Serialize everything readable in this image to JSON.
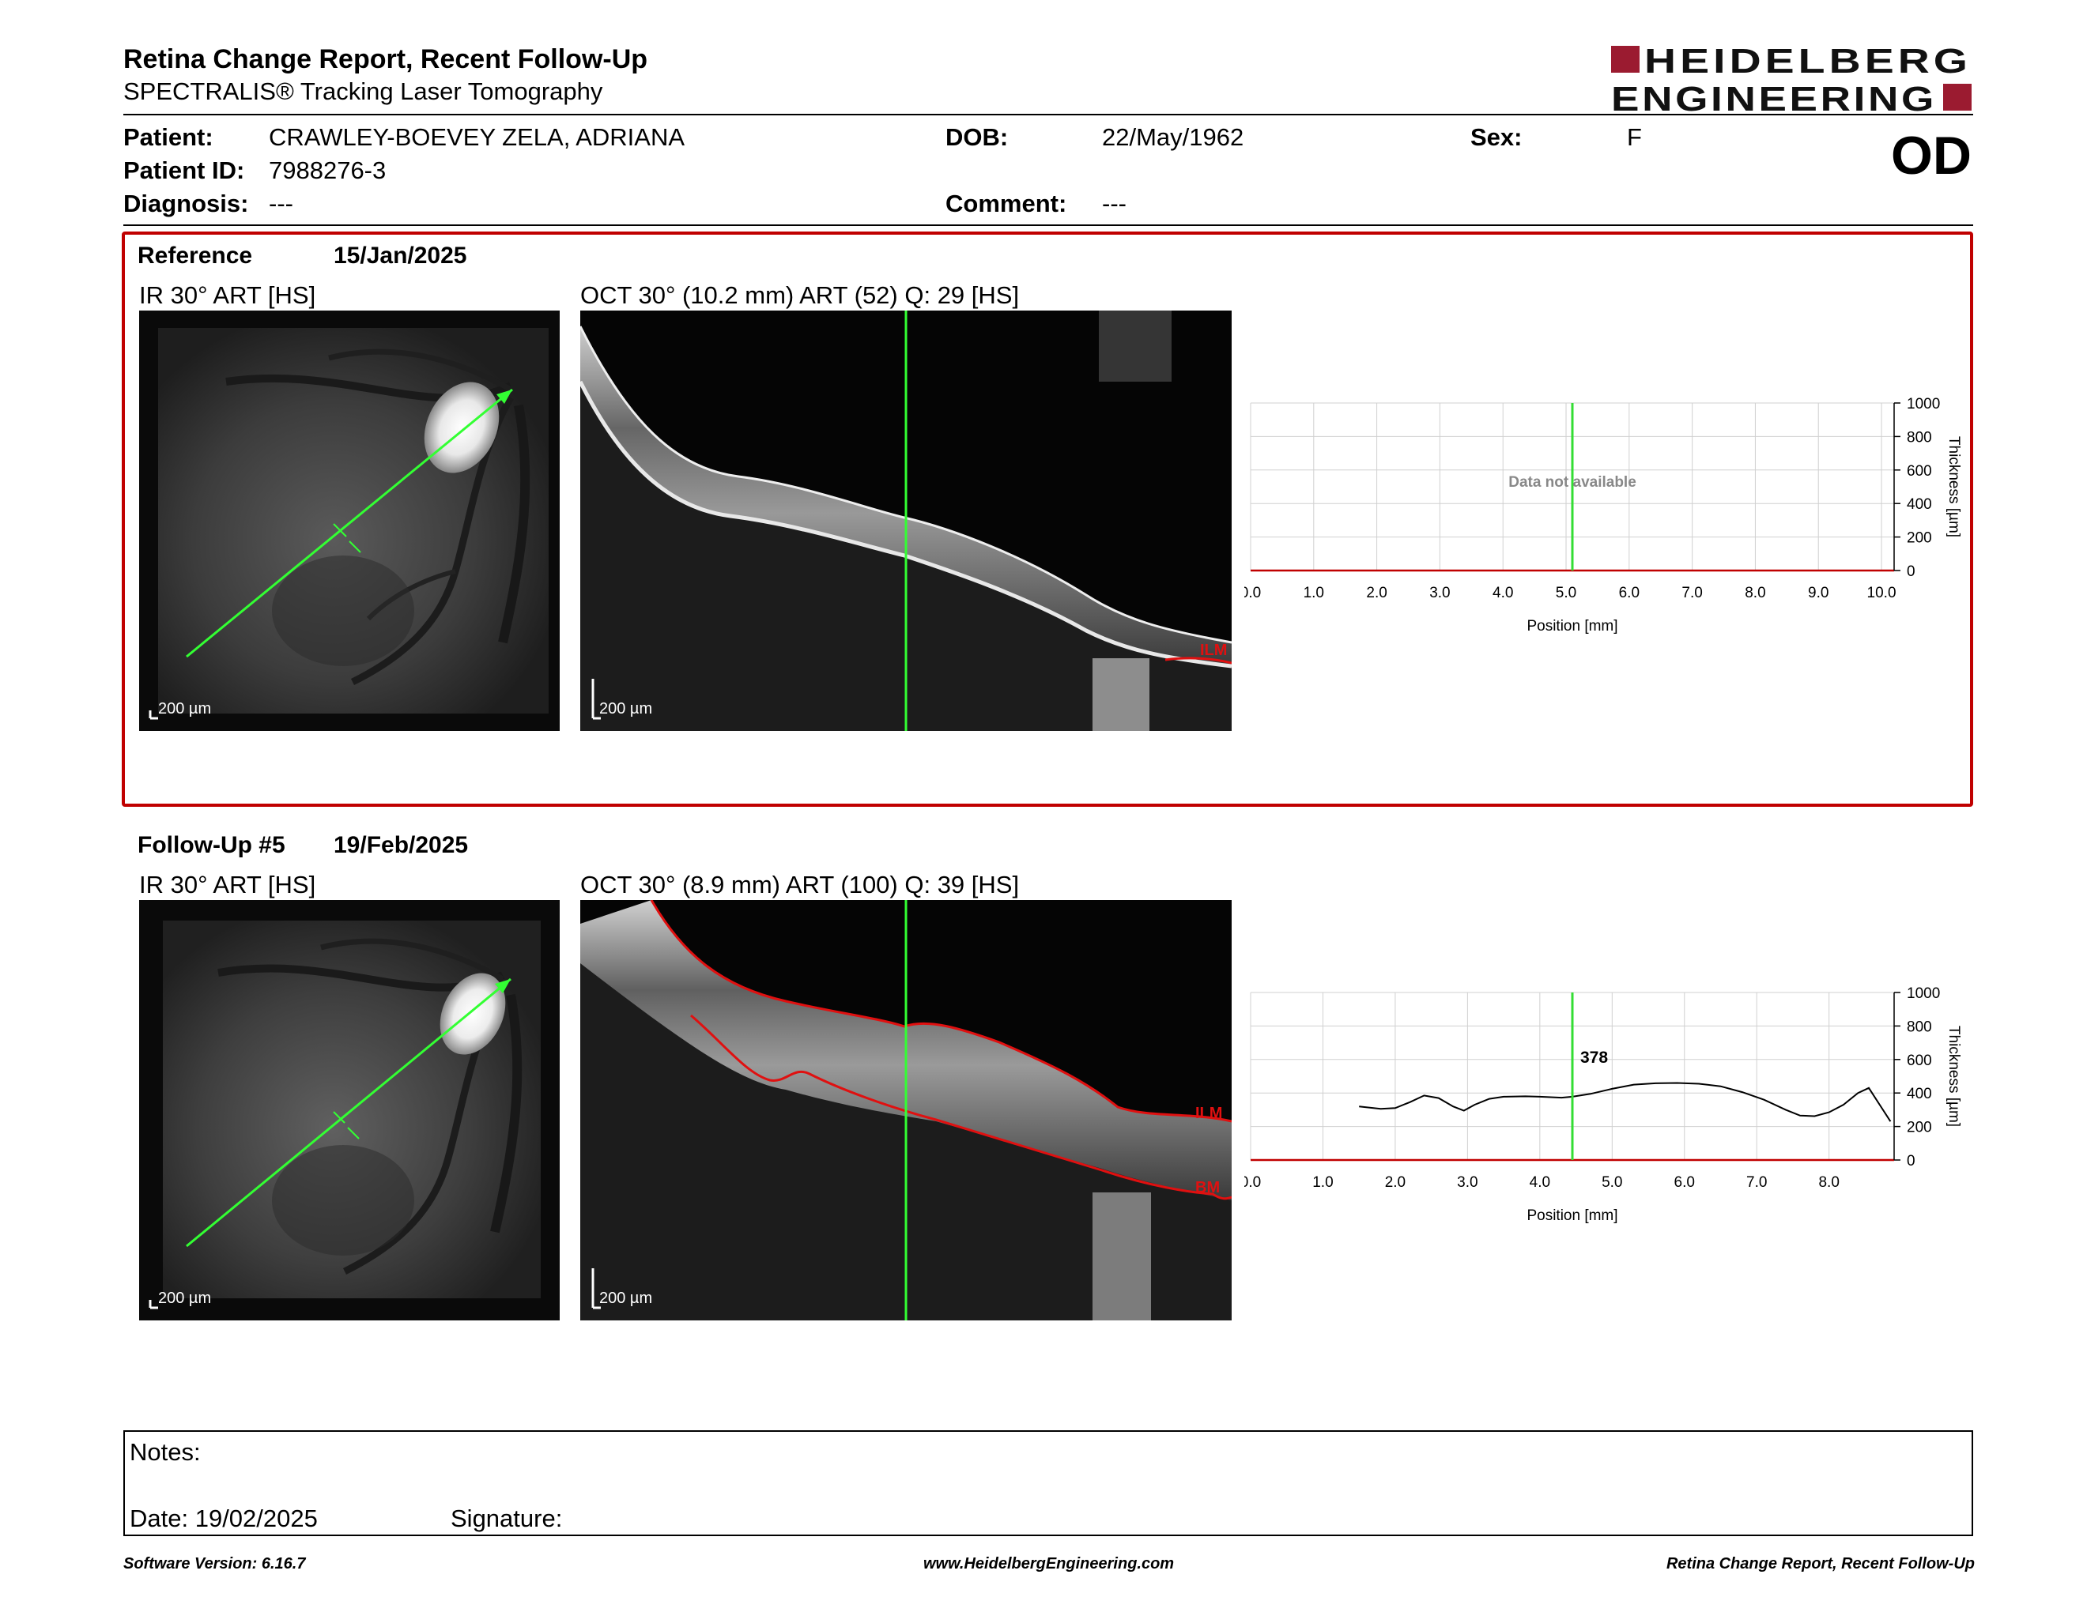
{
  "header": {
    "title": "Retina Change Report, Recent Follow-Up",
    "subtitle": "SPECTRALIS® Tracking Laser Tomography",
    "logo_line1": "HEIDELBERG",
    "logo_line2": "ENGINEERING"
  },
  "patient": {
    "patient_label": "Patient:",
    "patient_value": "CRAWLEY-BOEVEY ZELA, ADRIANA",
    "dob_label": "DOB:",
    "dob_value": "22/May/1962",
    "sex_label": "Sex:",
    "sex_value": "F",
    "id_label": "Patient ID:",
    "id_value": "7988276-3",
    "diagnosis_label": "Diagnosis:",
    "diagnosis_value": "---",
    "comment_label": "Comment:",
    "comment_value": "---",
    "eye": "OD"
  },
  "reference": {
    "label": "Reference",
    "date": "15/Jan/2025",
    "ir_title": "IR 30° ART [HS]",
    "oct_title": "OCT 30° (10.2 mm) ART (52) Q: 29 [HS]",
    "ir_scale": "200 µm",
    "oct_scale": "200 µm",
    "oct_layers": [
      "ILM"
    ]
  },
  "followup": {
    "label": "Follow-Up #5",
    "date": "19/Feb/2025",
    "ir_title": "IR 30° ART [HS]",
    "oct_title": "OCT 30° (8.9 mm) ART (100) Q: 39 [HS]",
    "ir_scale": "200 µm",
    "oct_scale": "200 µm",
    "oct_layers": [
      "ILM",
      "BM"
    ]
  },
  "chart_data": [
    {
      "type": "line",
      "xlabel": "Position [mm]",
      "ylabel": "Thickness [µm]",
      "xlim": [
        0,
        10.2
      ],
      "ylim": [
        0,
        1000
      ],
      "xticks": [
        "0.0",
        "1.0",
        "2.0",
        "3.0",
        "4.0",
        "5.0",
        "6.0",
        "7.0",
        "8.0",
        "9.0",
        "10.0"
      ],
      "yticks": [
        "0",
        "200",
        "400",
        "600",
        "800",
        "1000"
      ],
      "grid": true,
      "cursor_x": 5.1,
      "message": "Data not available",
      "x": [],
      "y": []
    },
    {
      "type": "line",
      "xlabel": "Position [mm]",
      "ylabel": "Thickness [µm]",
      "xlim": [
        0,
        8.9
      ],
      "ylim": [
        0,
        1000
      ],
      "xticks": [
        "0.0",
        "1.0",
        "2.0",
        "3.0",
        "4.0",
        "5.0",
        "6.0",
        "7.0",
        "8.0"
      ],
      "yticks": [
        "0",
        "200",
        "400",
        "600",
        "800",
        "1000"
      ],
      "grid": true,
      "cursor_x": 4.45,
      "cursor_label": "378",
      "x": [
        1.5,
        1.8,
        2.0,
        2.2,
        2.4,
        2.6,
        2.8,
        2.95,
        3.1,
        3.3,
        3.5,
        3.8,
        4.0,
        4.3,
        4.45,
        4.7,
        5.0,
        5.3,
        5.6,
        5.9,
        6.2,
        6.5,
        6.8,
        7.1,
        7.4,
        7.6,
        7.8,
        8.0,
        8.2,
        8.4,
        8.55,
        8.7,
        8.85
      ],
      "y": [
        320,
        305,
        310,
        345,
        385,
        370,
        320,
        295,
        330,
        365,
        378,
        380,
        378,
        372,
        378,
        395,
        425,
        450,
        458,
        460,
        455,
        440,
        405,
        360,
        300,
        265,
        262,
        285,
        330,
        400,
        430,
        330,
        230
      ]
    }
  ],
  "notes": {
    "notes_label": "Notes:",
    "date_label": "Date: 19/02/2025",
    "signature_label": "Signature:"
  },
  "footer": {
    "version": "Software Version: 6.16.7",
    "website": "www.HeidelbergEngineering.com",
    "report": "Retina Change Report, Recent Follow-Up"
  },
  "colors": {
    "accent": "#c00000",
    "brand": "#9b1b30",
    "scan_line": "#33ff33",
    "layer": "#e01010"
  }
}
